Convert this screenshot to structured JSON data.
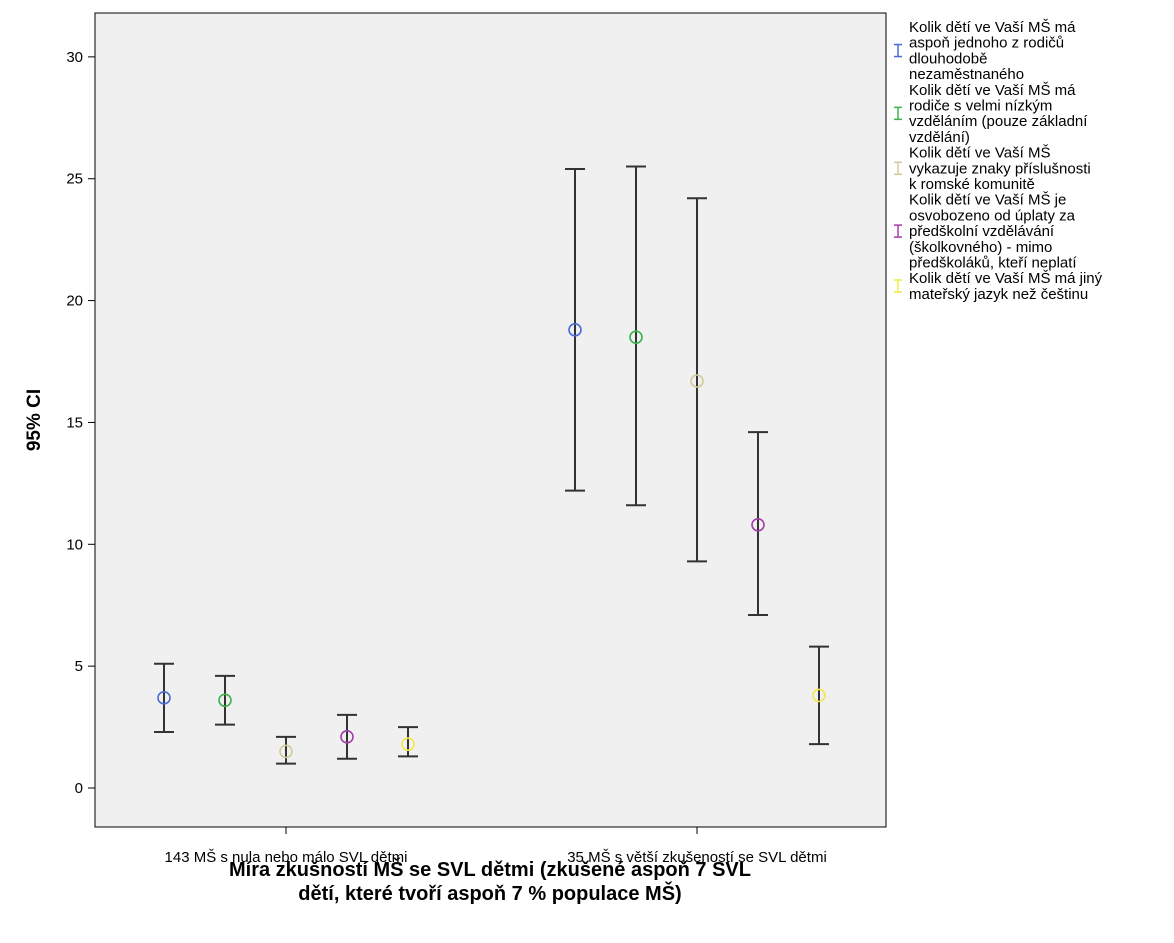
{
  "chart_data": {
    "type": "errorbar",
    "title": "",
    "ylabel": "95% CI",
    "xlabel_lines": [
      "Míra zkušností MŠ se SVL dětmi (zkušené aspoň 7 SVL",
      "dětí, které tvoří aspoň 7 % populace MŠ)"
    ],
    "ylim": [
      -1.6,
      31.8
    ],
    "yticks": [
      0,
      5,
      10,
      15,
      20,
      25,
      30
    ],
    "grid": false,
    "legend_position": "right",
    "categories": [
      "143 MŠ s nula nebo málo SVL dětmi",
      "35 MŠ s větší zkušeností se SVL dětmi"
    ],
    "series": [
      {
        "name_lines": [
          "Kolik dětí ve Vaší MŠ má",
          "aspoň jednoho z rodičů",
          "dlouhodobě",
          "nezaměstnaného"
        ],
        "color": "#4a6bd6",
        "mean": [
          3.7,
          18.8
        ],
        "lower": [
          2.3,
          12.2
        ],
        "upper": [
          5.1,
          25.4
        ]
      },
      {
        "name_lines": [
          "Kolik dětí ve Vaší MŠ má",
          "rodiče s velmi nízkým",
          "vzděláním (pouze základní",
          "vzdělání)"
        ],
        "color": "#3cb44b",
        "mean": [
          3.6,
          18.5
        ],
        "lower": [
          2.6,
          11.6
        ],
        "upper": [
          4.6,
          25.5
        ]
      },
      {
        "name_lines": [
          "Kolik dětí ve Vaší MŠ",
          "vykazuje znaky příslušnosti",
          "k romské komunitě"
        ],
        "color": "#d2cc9a",
        "mean": [
          1.5,
          16.7
        ],
        "lower": [
          1.0,
          9.3
        ],
        "upper": [
          2.1,
          24.2
        ]
      },
      {
        "name_lines": [
          "Kolik dětí ve Vaší MŠ je",
          "osvobozeno od úplaty za",
          "předškolní vzdělávání",
          "(školkovného) - mimo",
          "předškoláků, kteří neplatí"
        ],
        "color": "#a43ca8",
        "mean": [
          2.1,
          10.8
        ],
        "lower": [
          1.2,
          7.1
        ],
        "upper": [
          3.0,
          14.6
        ]
      },
      {
        "name_lines": [
          "Kolik dětí ve Vaší MŠ má jiný",
          "mateřský jazyk než češtinu"
        ],
        "color": "#f0ea4a",
        "mean": [
          1.8,
          3.8
        ],
        "lower": [
          1.3,
          1.8
        ],
        "upper": [
          2.5,
          5.8
        ]
      }
    ]
  }
}
